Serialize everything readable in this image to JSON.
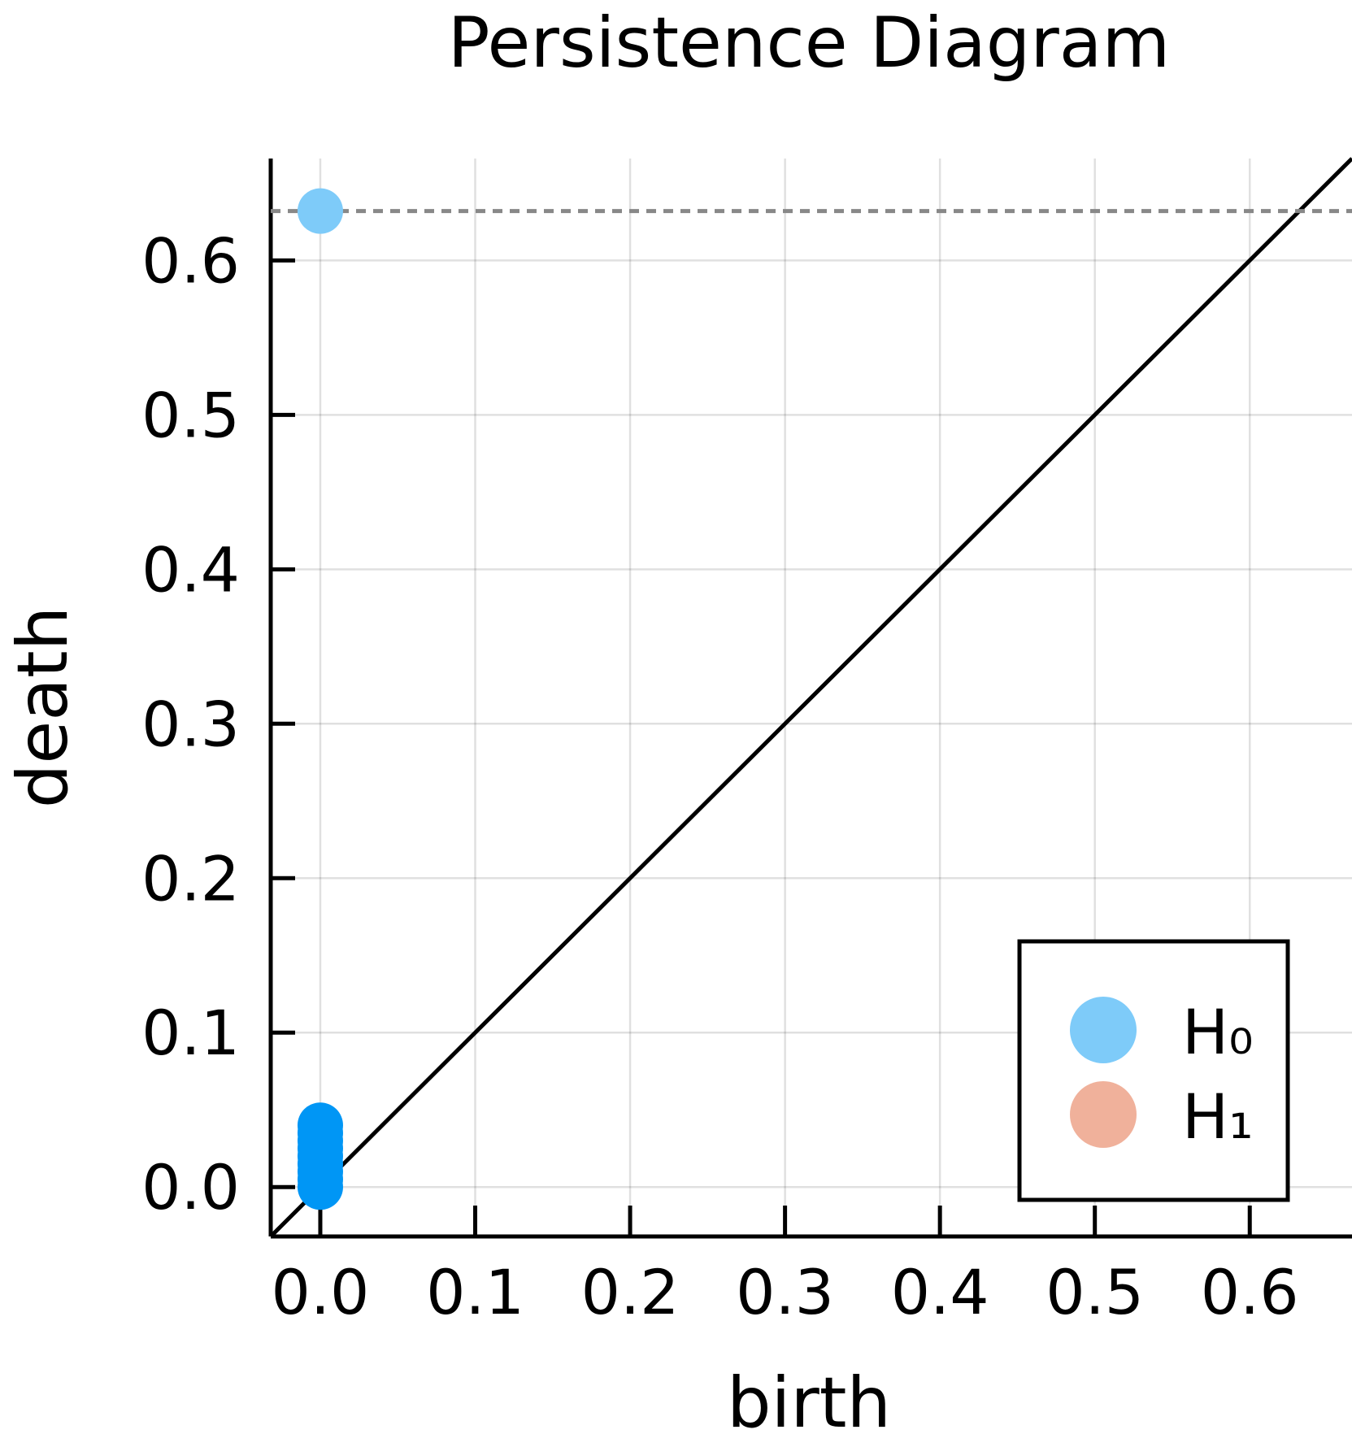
{
  "chart_data": {
    "type": "scatter",
    "title": "Persistence Diagram",
    "xlabel": "birth",
    "ylabel": "death",
    "xlim": [
      -0.032,
      0.666
    ],
    "ylim": [
      -0.032,
      0.666
    ],
    "x_ticks": [
      "0.0",
      "0.1",
      "0.2",
      "0.3",
      "0.4",
      "0.5",
      "0.6"
    ],
    "y_ticks": [
      "0.0",
      "0.1",
      "0.2",
      "0.3",
      "0.4",
      "0.5",
      "0.6"
    ],
    "grid": true,
    "legend_position": "bottom-right",
    "diagonal": true,
    "infinity_line": 0.632,
    "series": [
      {
        "name": "H₀",
        "color": "#0096f5",
        "legend_color": "#7ecbf9",
        "points": [
          {
            "x": 0.0,
            "y": 0.0
          },
          {
            "x": 0.0,
            "y": 0.005
          },
          {
            "x": 0.0,
            "y": 0.01
          },
          {
            "x": 0.0,
            "y": 0.015
          },
          {
            "x": 0.0,
            "y": 0.02
          },
          {
            "x": 0.0,
            "y": 0.025
          },
          {
            "x": 0.0,
            "y": 0.03
          },
          {
            "x": 0.0,
            "y": 0.035
          },
          {
            "x": 0.0,
            "y": 0.04
          }
        ],
        "infinite_points": [
          {
            "x": 0.0,
            "y": 0.632
          }
        ]
      },
      {
        "name": "H₁",
        "color": "#f0b19b",
        "legend_color": "#f0b19b",
        "points": []
      }
    ]
  }
}
